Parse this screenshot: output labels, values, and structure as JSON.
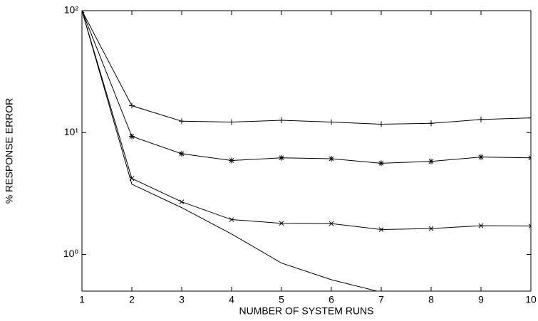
{
  "chart_data": {
    "type": "line",
    "x_label": "NUMBER OF SYSTEM RUNS",
    "y_label": "% RESPONSE ERROR",
    "x": [
      1,
      2,
      3,
      4,
      5,
      6,
      7,
      8,
      9,
      10
    ],
    "xlim": [
      1,
      10
    ],
    "xticks": [
      1,
      2,
      3,
      4,
      5,
      6,
      7,
      8,
      9,
      10
    ],
    "ylim": [
      0.5,
      100
    ],
    "yscale": "log",
    "yticks": [
      {
        "value": 1,
        "label": "10⁰"
      },
      {
        "value": 10,
        "label": "10¹"
      },
      {
        "value": 100,
        "label": "10²"
      }
    ],
    "grid": false,
    "series": [
      {
        "color": "#000000",
        "marker": "+",
        "values": [
          100,
          16.6,
          12.4,
          12.2,
          12.6,
          12.2,
          11.7,
          11.9,
          12.8,
          13.2
        ]
      },
      {
        "color": "#000000",
        "marker": "*",
        "values": [
          100,
          9.3,
          6.7,
          5.9,
          6.2,
          6.1,
          5.6,
          5.8,
          6.3,
          6.2
        ]
      },
      {
        "color": "#000000",
        "marker": "x",
        "values": [
          100,
          4.2,
          2.7,
          1.93,
          1.8,
          1.79,
          1.6,
          1.63,
          1.72,
          1.71
        ]
      },
      {
        "color": "#000000",
        "marker": "none",
        "values": [
          100,
          3.77,
          2.42,
          1.47,
          0.85,
          0.62,
          0.49,
          null,
          null,
          null
        ]
      }
    ]
  }
}
